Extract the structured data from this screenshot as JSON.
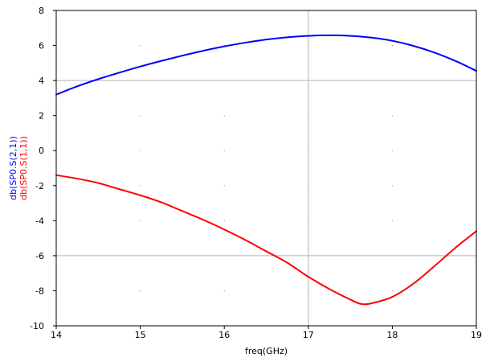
{
  "chart_data": {
    "type": "line",
    "xlabel": "freq(GHz)",
    "ylabels": [
      {
        "text": "db(SP0.S(2,1))",
        "color": "#0000ff"
      },
      {
        "text": "db(SP0.S(1,1))",
        "color": "#ff0000"
      }
    ],
    "xlim": [
      14,
      19
    ],
    "ylim": [
      -10,
      8
    ],
    "xticks": [
      14,
      15,
      16,
      17,
      18,
      19
    ],
    "yticks": [
      -10,
      -8,
      -6,
      -4,
      -2,
      0,
      2,
      4,
      6,
      8
    ],
    "grid": {
      "x_lines": [
        17
      ],
      "y_lines": [
        -6,
        4
      ],
      "dots_x": [
        15,
        16,
        17,
        18
      ],
      "dots_y": [
        -8,
        -4,
        -2,
        0,
        2,
        6
      ]
    },
    "series": [
      {
        "color": "#0000ff",
        "x": [
          14,
          14.25,
          14.5,
          14.75,
          15,
          15.25,
          15.5,
          15.75,
          16,
          16.25,
          16.5,
          16.75,
          17,
          17.25,
          17.5,
          17.75,
          18,
          18.25,
          18.5,
          18.75,
          19
        ],
        "y": [
          3.2,
          3.67,
          4.08,
          4.45,
          4.8,
          5.12,
          5.42,
          5.7,
          5.95,
          6.16,
          6.34,
          6.47,
          6.55,
          6.58,
          6.55,
          6.45,
          6.27,
          5.98,
          5.6,
          5.12,
          4.55
        ]
      },
      {
        "color": "#ff0000",
        "x": [
          14,
          14.25,
          14.5,
          14.75,
          15,
          15.25,
          15.5,
          15.75,
          16,
          16.25,
          16.5,
          16.75,
          17,
          17.25,
          17.5,
          17.625,
          17.75,
          18,
          18.25,
          18.5,
          18.75,
          19
        ],
        "y": [
          -1.4,
          -1.6,
          -1.85,
          -2.2,
          -2.55,
          -2.95,
          -3.45,
          -3.95,
          -4.5,
          -5.1,
          -5.75,
          -6.4,
          -7.2,
          -7.9,
          -8.5,
          -8.75,
          -8.72,
          -8.35,
          -7.6,
          -6.6,
          -5.55,
          -4.6
        ]
      }
    ]
  }
}
